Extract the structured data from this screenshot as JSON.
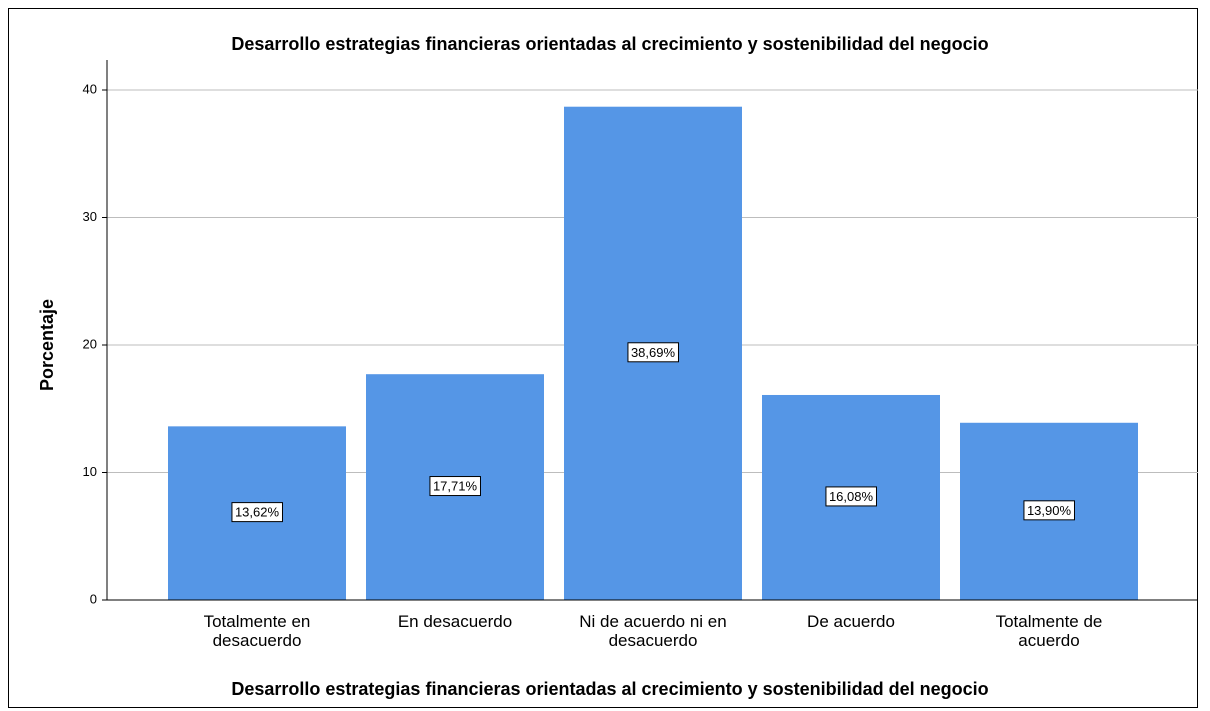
{
  "chart_data": {
    "type": "bar",
    "title": "Desarrollo estrategias financieras orientadas al crecimiento y sostenibilidad del negocio",
    "x_label": "Desarrollo estrategias financieras orientadas al crecimiento y sostenibilidad del negocio",
    "y_label": "Porcentaje",
    "categories": [
      "Totalmente en desacuerdo",
      "En desacuerdo",
      "Ni de acuerdo ni en desacuerdo",
      "De acuerdo",
      "Totalmente de acuerdo"
    ],
    "values": [
      13.62,
      17.71,
      38.69,
      16.08,
      13.9
    ],
    "value_labels": [
      "13,62%",
      "17,71%",
      "38,69%",
      "16,08%",
      "13,90%"
    ],
    "color": "#5596e6",
    "ylim": [
      0,
      40
    ],
    "yticks": [
      0,
      10,
      20,
      30,
      40
    ],
    "grid": true
  }
}
